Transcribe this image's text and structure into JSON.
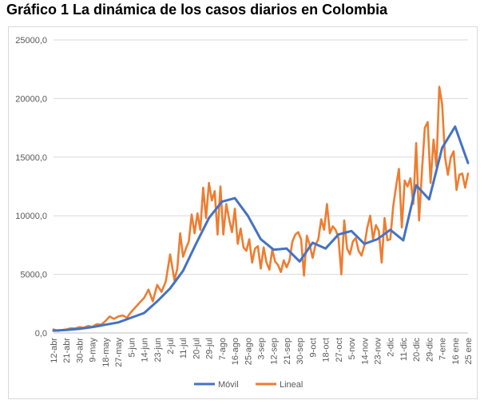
{
  "title": "Gráfico 1 La dinámica de los casos diarios en Colombia",
  "chart_data": {
    "type": "line",
    "title": "Gráfico 1 La dinámica de los casos diarios en Colombia",
    "xlabel": "",
    "ylabel": "",
    "ylim": [
      0,
      25000
    ],
    "grid": true,
    "legend": "bottom",
    "y_ticks": [
      "0,0",
      "5000,0",
      "10000,0",
      "15000,0",
      "20000,0",
      "25000,0"
    ],
    "y_tick_values": [
      0,
      5000,
      10000,
      15000,
      20000,
      25000
    ],
    "x_ticks": [
      "12-abr",
      "21-abr",
      "30-abr",
      "9-may",
      "18-may",
      "27-may",
      "5-jun",
      "14-jun",
      "23-jun",
      "2-jul",
      "11-jul",
      "20-jul",
      "29-jul",
      "7-ago",
      "16-ago",
      "25-ago",
      "3-sep",
      "12-sep",
      "21-sep",
      "30-sep",
      "9-oct",
      "18-oct",
      "27-oct",
      "5-nov",
      "14-nov",
      "23-nov",
      "2-dic",
      "11-dic",
      "20-dic",
      "29-dic",
      "7-ene",
      "16 ene",
      "25 ene"
    ],
    "series": [
      {
        "name": "Móvil",
        "color": "#4472c4",
        "x": [
          0,
          9,
          18,
          27,
          36,
          45,
          54,
          63,
          72,
          81,
          90,
          99,
          108,
          117,
          126,
          135,
          144,
          153,
          162,
          171,
          180,
          189,
          198,
          207,
          216,
          225,
          234,
          243,
          252,
          261,
          270,
          279,
          288
        ],
        "values": [
          200,
          250,
          350,
          500,
          700,
          900,
          1300,
          1700,
          2700,
          3800,
          5300,
          7600,
          9800,
          11200,
          11500,
          10000,
          8000,
          7100,
          7200,
          6100,
          7700,
          7200,
          8400,
          8700,
          7600,
          8000,
          8800,
          7900,
          12600,
          11400,
          15800,
          17600,
          14500
        ]
      },
      {
        "name": "Lineal",
        "color": "#ed7d31",
        "x": [
          0,
          3,
          6,
          9,
          12,
          15,
          18,
          21,
          24,
          27,
          30,
          33,
          36,
          39,
          42,
          45,
          48,
          51,
          54,
          57,
          60,
          63,
          66,
          69,
          72,
          75,
          78,
          81,
          84,
          86,
          88,
          90,
          92,
          94,
          96,
          98,
          100,
          102,
          104,
          106,
          108,
          110,
          112,
          114,
          116,
          118,
          120,
          122,
          124,
          126,
          128,
          130,
          132,
          134,
          136,
          138,
          140,
          142,
          144,
          146,
          148,
          150,
          152,
          154,
          156,
          158,
          160,
          162,
          164,
          166,
          168,
          170,
          172,
          174,
          176,
          178,
          180,
          182,
          184,
          186,
          188,
          190,
          192,
          194,
          196,
          198,
          200,
          202,
          204,
          206,
          208,
          210,
          212,
          214,
          216,
          218,
          220,
          222,
          224,
          226,
          228,
          230,
          232,
          234,
          236,
          238,
          240,
          242,
          244,
          246,
          248,
          250,
          252,
          254,
          256,
          258,
          260,
          262,
          264,
          266,
          268,
          270,
          272,
          274,
          276,
          278,
          280,
          282,
          284,
          286,
          288
        ],
        "values": [
          300,
          180,
          250,
          300,
          400,
          380,
          500,
          450,
          600,
          520,
          750,
          700,
          1000,
          1400,
          1200,
          1400,
          1500,
          1300,
          1800,
          2200,
          2600,
          3000,
          3700,
          2700,
          4100,
          3500,
          4400,
          6700,
          4500,
          5500,
          8500,
          6500,
          7200,
          7800,
          10100,
          8500,
          10200,
          8800,
          12400,
          9800,
          12800,
          11300,
          12100,
          8400,
          12500,
          8400,
          11000,
          9700,
          8600,
          10600,
          7600,
          8900,
          7300,
          7000,
          8000,
          6000,
          7200,
          7400,
          5500,
          7300,
          6000,
          5400,
          7100,
          6100,
          5800,
          5200,
          6200,
          5600,
          6200,
          7800,
          8400,
          8600,
          8000,
          4900,
          8300,
          7500,
          6400,
          7500,
          8000,
          9700,
          8800,
          11000,
          8500,
          9100,
          8800,
          8100,
          5000,
          9600,
          7200,
          6700,
          7800,
          8100,
          7000,
          6600,
          7500,
          9000,
          10000,
          8000,
          9200,
          8700,
          6000,
          9800,
          7900,
          8000,
          10800,
          12500,
          14000,
          9000,
          13000,
          12500,
          13200,
          11000,
          16200,
          9600,
          13800,
          17500,
          18000,
          12800,
          16500,
          14200,
          21000,
          19500,
          15000,
          13500,
          15000,
          15500,
          12200,
          13500,
          13600,
          12400,
          13600
        ]
      }
    ]
  }
}
